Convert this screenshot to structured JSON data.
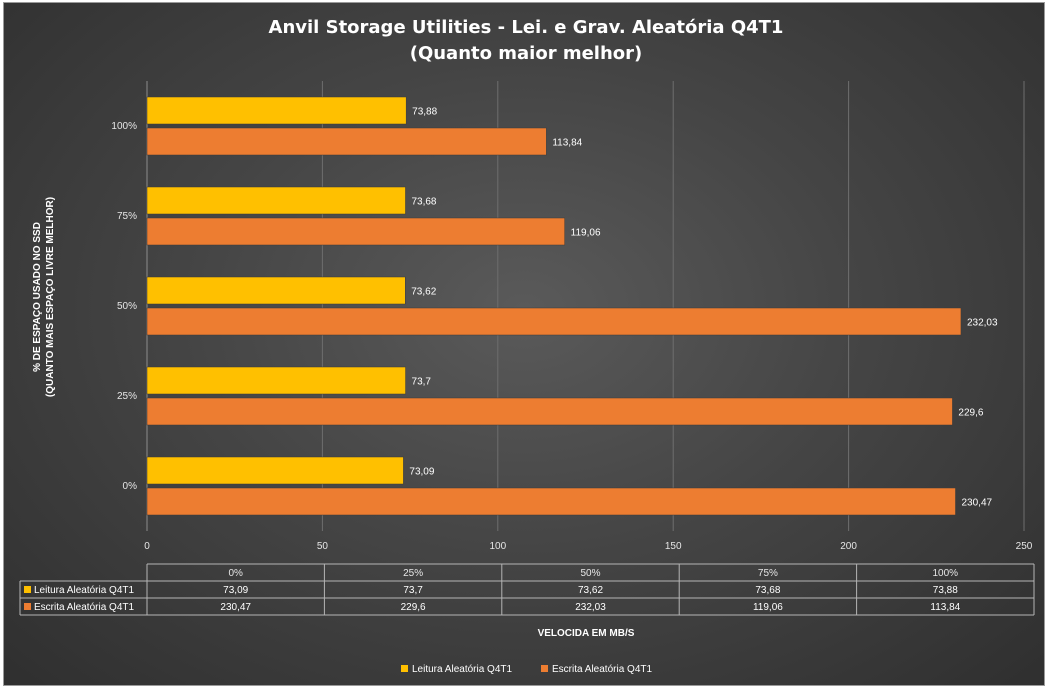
{
  "chart_data": {
    "type": "bar",
    "orientation": "horizontal",
    "title_line1": "Anvil Storage Utilities - Lei. e Grav. Aleatória Q4T1",
    "title_line2": "(Quanto maior melhor)",
    "ylabel_line1": "% DE ESPAÇO USADO NO SSD",
    "ylabel_line2": "(QUANTO MAIS ESPAÇO LIVRE MELHOR)",
    "xlabel": "VELOCIDA EM MB/S",
    "categories": [
      "0%",
      "25%",
      "50%",
      "75%",
      "100%"
    ],
    "xlim": [
      0,
      250
    ],
    "xticks": [
      "0",
      "50",
      "100",
      "150",
      "200",
      "250"
    ],
    "grid": true,
    "legend_position": "bottom",
    "series": [
      {
        "name": "Leitura Aleatória Q4T1",
        "color": "#ffc000",
        "values": [
          73.09,
          73.7,
          73.62,
          73.68,
          73.88
        ],
        "labels": [
          "73,09",
          "73,7",
          "73,62",
          "73,68",
          "73,88"
        ]
      },
      {
        "name": "Escrita Aleatória Q4T1",
        "color": "#ed7d31",
        "values": [
          230.47,
          229.6,
          232.03,
          119.06,
          113.84
        ],
        "labels": [
          "230,47",
          "229,6",
          "232,03",
          "119,06",
          "113,84"
        ]
      }
    ]
  }
}
